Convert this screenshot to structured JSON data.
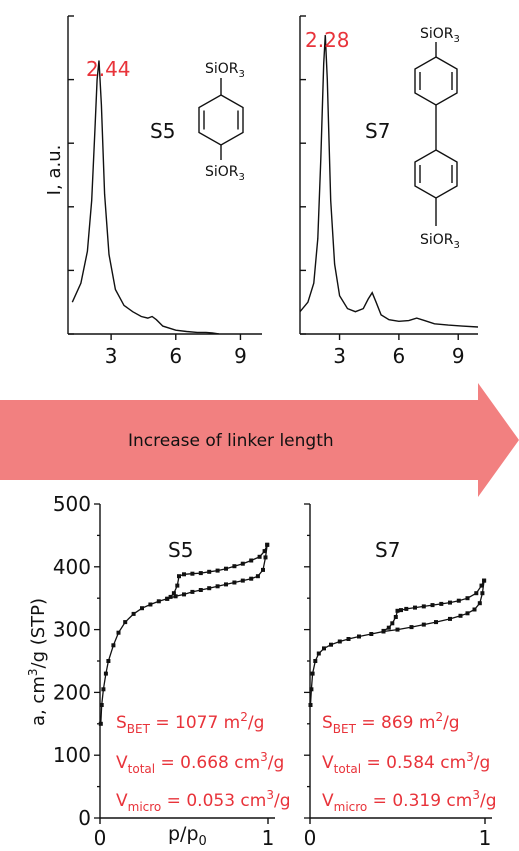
{
  "arrow": {
    "label": "Increase of linker length",
    "color": "#f28080"
  },
  "colors": {
    "annotation": "#e8333a",
    "curve": "#111111"
  },
  "xrd": {
    "ylabel": "I, a.u.",
    "panels": [
      {
        "sample": "S5",
        "peak_label": "2.44",
        "ring_count": 1,
        "group_top": "SiOR3",
        "group_bottom": "SiOR3"
      },
      {
        "sample": "S7",
        "peak_label": "2.28",
        "ring_count": 2,
        "group_top": "SiOR3",
        "group_bottom": "SiOR3"
      }
    ]
  },
  "iso": {
    "ylabel": "a, cm³/g (STP)",
    "xlabel": "p/p0",
    "panels": [
      {
        "sample": "S5",
        "sbet": "1077",
        "vtotal": "0.668",
        "vmicro": "0.053"
      },
      {
        "sample": "S7",
        "sbet": "869",
        "vtotal": "0.584",
        "vmicro": "0.319"
      }
    ]
  },
  "chart_data": [
    {
      "type": "line",
      "title": "S5",
      "ylabel": "I, a.u.",
      "xlim": [
        1,
        10
      ],
      "ylim": [
        0,
        100
      ],
      "xticks": [
        3,
        6,
        9
      ],
      "series": [
        {
          "x": [
            1.2,
            1.6,
            1.9,
            2.1,
            2.25,
            2.35,
            2.44,
            2.55,
            2.7,
            2.9,
            3.2,
            3.6,
            4.0,
            4.4,
            4.7,
            4.9,
            5.1,
            5.4,
            6.0,
            6.5,
            7.0,
            7.4,
            7.7,
            8.0
          ],
          "y": [
            10,
            16,
            26,
            42,
            64,
            80,
            86,
            72,
            44,
            25,
            14,
            9,
            7,
            5.5,
            5,
            5.5,
            4.5,
            2.5,
            1.2,
            0.8,
            0.5,
            0.5,
            0.3,
            0
          ]
        }
      ]
    },
    {
      "type": "line",
      "title": "S7",
      "xlim": [
        1,
        10
      ],
      "ylim": [
        0,
        100
      ],
      "xticks": [
        3,
        6,
        9
      ],
      "series": [
        {
          "x": [
            1.0,
            1.4,
            1.7,
            1.9,
            2.05,
            2.2,
            2.28,
            2.38,
            2.55,
            2.75,
            3.0,
            3.4,
            3.8,
            4.2,
            4.45,
            4.65,
            4.85,
            5.1,
            5.5,
            6.0,
            6.5,
            6.9,
            7.3,
            7.8,
            8.5,
            9.2,
            10.0
          ],
          "y": [
            7,
            10,
            16,
            30,
            55,
            85,
            94,
            80,
            42,
            22,
            12,
            8,
            7,
            8,
            11,
            13,
            10,
            6,
            4.5,
            4,
            4.2,
            5,
            4.2,
            3.2,
            2.8,
            2.5,
            2.2
          ]
        }
      ]
    },
    {
      "type": "line",
      "title": "S5",
      "xlabel": "p/p0",
      "ylabel": "a, cm³/g (STP)",
      "xlim": [
        0,
        1
      ],
      "ylim": [
        0,
        500
      ],
      "xticks": [
        0,
        1
      ],
      "yticks": [
        0,
        100,
        200,
        300,
        400,
        500
      ],
      "series": [
        {
          "name": "adsorption",
          "x": [
            0.005,
            0.01,
            0.02,
            0.035,
            0.05,
            0.08,
            0.11,
            0.15,
            0.2,
            0.25,
            0.3,
            0.35,
            0.4,
            0.45,
            0.5,
            0.55,
            0.6,
            0.65,
            0.7,
            0.75,
            0.8,
            0.85,
            0.9,
            0.94,
            0.97,
            0.985,
            0.995
          ],
          "y": [
            150,
            180,
            205,
            230,
            250,
            275,
            295,
            312,
            325,
            334,
            340,
            345,
            349,
            353,
            356,
            360,
            363,
            366,
            369,
            372,
            375,
            378,
            381,
            385,
            395,
            415,
            435
          ]
        },
        {
          "name": "desorption",
          "x": [
            0.995,
            0.98,
            0.95,
            0.9,
            0.85,
            0.8,
            0.75,
            0.7,
            0.65,
            0.6,
            0.55,
            0.5,
            0.47,
            0.46,
            0.44,
            0.42,
            0.4
          ],
          "y": [
            435,
            425,
            416,
            410,
            405,
            401,
            397,
            394,
            392,
            390,
            389,
            388,
            385,
            370,
            358,
            352,
            349
          ]
        }
      ]
    },
    {
      "type": "line",
      "title": "S7",
      "xlabel": "p/p0",
      "xlim": [
        0,
        1
      ],
      "ylim": [
        0,
        500
      ],
      "xticks": [
        0,
        1
      ],
      "series": [
        {
          "name": "adsorption",
          "x": [
            0.003,
            0.008,
            0.015,
            0.03,
            0.05,
            0.08,
            0.12,
            0.17,
            0.22,
            0.28,
            0.35,
            0.42,
            0.5,
            0.58,
            0.65,
            0.72,
            0.8,
            0.86,
            0.9,
            0.94,
            0.97,
            0.985,
            0.995
          ],
          "y": [
            180,
            205,
            230,
            250,
            262,
            270,
            276,
            281,
            285,
            289,
            293,
            297,
            300,
            304,
            308,
            312,
            317,
            322,
            326,
            332,
            342,
            358,
            378
          ]
        },
        {
          "name": "desorption",
          "x": [
            0.995,
            0.98,
            0.95,
            0.9,
            0.85,
            0.8,
            0.75,
            0.7,
            0.65,
            0.6,
            0.55,
            0.52,
            0.5,
            0.49,
            0.47,
            0.45,
            0.42
          ],
          "y": [
            378,
            370,
            358,
            350,
            346,
            343,
            341,
            339,
            337,
            335,
            333,
            331,
            330,
            320,
            310,
            303,
            298
          ]
        }
      ]
    }
  ]
}
